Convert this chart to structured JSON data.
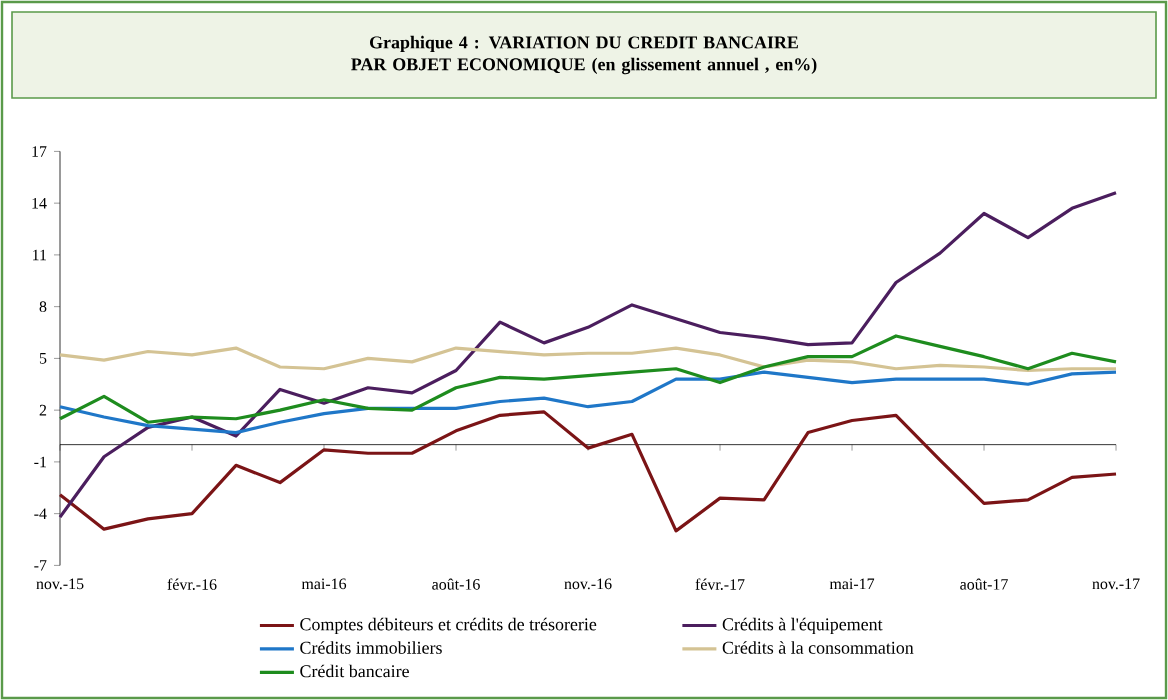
{
  "chart_data": {
    "type": "line",
    "title": "Graphique 4 : VARIATION DU CREDIT BANCAIRE PAR OBJET ECONOMIQUE (en glissement annuel , en%)",
    "categories": [
      "nov.-15",
      null,
      null,
      "févr.-16",
      null,
      null,
      "mai-16",
      null,
      null,
      "août-16",
      null,
      null,
      "nov.-16",
      null,
      null,
      "févr.-17",
      null,
      null,
      "mai-17",
      null,
      null,
      "août-17",
      null,
      null,
      "nov.-17"
    ],
    "series": [
      {
        "name": "Comptes débiteurs et crédits de trésorerie",
        "color": "#7b1416",
        "values": [
          -2.9,
          -4.9,
          -4.3,
          -4.0,
          -1.2,
          -2.2,
          -0.3,
          -0.5,
          -0.5,
          0.8,
          1.7,
          1.9,
          -0.2,
          0.6,
          -5.0,
          -3.1,
          -3.2,
          0.7,
          1.4,
          1.7,
          -0.9,
          -3.4,
          -3.2,
          -1.9,
          -1.7
        ]
      },
      {
        "name": "Crédits à l'équipement",
        "color": "#4b1e5e",
        "values": [
          -4.2,
          -0.7,
          1.0,
          1.6,
          0.5,
          3.2,
          2.4,
          3.3,
          3.0,
          4.3,
          7.1,
          5.9,
          6.8,
          8.1,
          7.3,
          6.5,
          6.2,
          5.8,
          5.9,
          9.4,
          11.1,
          13.4,
          12.0,
          13.7,
          14.6
        ]
      },
      {
        "name": "Crédits immobiliers",
        "color": "#1f77c8",
        "values": [
          2.2,
          1.6,
          1.1,
          0.9,
          0.7,
          1.3,
          1.8,
          2.1,
          2.1,
          2.1,
          2.5,
          2.7,
          2.2,
          2.5,
          3.8,
          3.8,
          4.2,
          3.9,
          3.6,
          3.8,
          3.8,
          3.8,
          3.5,
          4.1,
          4.2
        ]
      },
      {
        "name": "Crédits à la consommation",
        "color": "#d4c394",
        "values": [
          5.2,
          4.9,
          5.4,
          5.2,
          5.6,
          4.5,
          4.4,
          5.0,
          4.8,
          5.6,
          5.4,
          5.2,
          5.3,
          5.3,
          5.6,
          5.2,
          4.5,
          4.9,
          4.8,
          4.4,
          4.6,
          4.5,
          4.3,
          4.4,
          4.4
        ]
      },
      {
        "name": "Crédit bancaire",
        "color": "#1e8c1e",
        "values": [
          1.5,
          2.8,
          1.3,
          1.6,
          1.5,
          2.0,
          2.6,
          2.1,
          2.0,
          3.3,
          3.9,
          3.8,
          4.0,
          4.2,
          4.4,
          3.6,
          4.5,
          5.1,
          5.1,
          6.3,
          5.7,
          5.1,
          4.4,
          5.3,
          4.8
        ]
      }
    ],
    "ylim": [
      -7,
      17
    ],
    "yticks": [
      -7,
      -4,
      -1,
      2,
      5,
      8,
      11,
      14,
      17
    ],
    "legend": "bottom",
    "marker": "none",
    "line_style": "solid",
    "grid": false
  }
}
